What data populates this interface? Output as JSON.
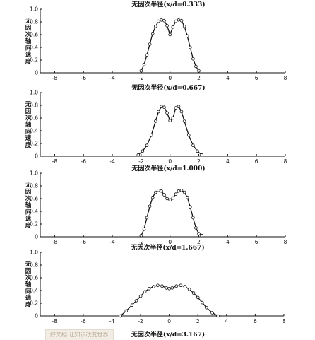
{
  "chart_data": [
    {
      "type": "line",
      "caption": "无因次半径(x/d=0.333)",
      "ylabel": "无因次轴向速度",
      "xlim": [
        -9,
        8
      ],
      "ylim": [
        0,
        1.0
      ],
      "xticks": [
        "-8",
        "-6",
        "-4",
        "-2",
        "0",
        "2",
        "4",
        "6",
        "8"
      ],
      "yticks": [
        "0",
        "0.2",
        "0.4",
        "0.6",
        "0.8",
        "1.0"
      ],
      "grid": false,
      "series": [
        {
          "x": [
            -2.0,
            -1.8,
            -1.6,
            -1.4,
            -1.2,
            -1.0,
            -0.8,
            -0.6,
            -0.4,
            -0.2,
            0.0,
            0.2,
            0.4,
            0.6,
            0.8,
            1.0,
            1.2,
            1.4,
            1.6,
            1.8,
            2.0
          ],
          "y": [
            0.03,
            0.13,
            0.28,
            0.45,
            0.62,
            0.73,
            0.81,
            0.83,
            0.82,
            0.74,
            0.6,
            0.72,
            0.81,
            0.83,
            0.82,
            0.73,
            0.58,
            0.4,
            0.22,
            0.1,
            0.03
          ]
        }
      ]
    },
    {
      "type": "line",
      "caption": "无因次半径(x/d=0.667)",
      "ylabel": "无因次轴向速度",
      "xlim": [
        -9,
        8
      ],
      "ylim": [
        0,
        1.0
      ],
      "xticks": [
        "-8",
        "-6",
        "-4",
        "-2",
        "0",
        "2",
        "4",
        "6",
        "8"
      ],
      "yticks": [
        "0",
        "0.2",
        "0.4",
        "0.6",
        "0.8",
        "1.0"
      ],
      "grid": false,
      "series": [
        {
          "x": [
            -2.2,
            -1.9,
            -1.6,
            -1.3,
            -1.0,
            -0.8,
            -0.6,
            -0.4,
            -0.2,
            0.0,
            0.2,
            0.4,
            0.6,
            0.8,
            1.0,
            1.3,
            1.6,
            1.9,
            2.2
          ],
          "y": [
            0.02,
            0.08,
            0.17,
            0.33,
            0.55,
            0.7,
            0.78,
            0.77,
            0.68,
            0.56,
            0.6,
            0.76,
            0.78,
            0.7,
            0.55,
            0.33,
            0.17,
            0.08,
            0.02
          ]
        }
      ]
    },
    {
      "type": "line",
      "caption": "无因次半径(x/d=1.000)",
      "ylabel": "无因次轴向速度",
      "xlim": [
        -9,
        8
      ],
      "ylim": [
        0,
        1.0
      ],
      "xticks": [
        "-8",
        "-6",
        "-4",
        "-2",
        "0",
        "2",
        "4",
        "6",
        "8"
      ],
      "yticks": [
        "0",
        "0.2",
        "0.4",
        "0.6",
        "0.8",
        "1.0"
      ],
      "grid": false,
      "series": [
        {
          "x": [
            -2.0,
            -1.8,
            -1.6,
            -1.4,
            -1.2,
            -1.0,
            -0.8,
            -0.6,
            -0.4,
            -0.2,
            0.0,
            0.2,
            0.4,
            0.6,
            0.8,
            1.0,
            1.2,
            1.4,
            1.6,
            1.8,
            2.0,
            2.2
          ],
          "y": [
            0.02,
            0.12,
            0.3,
            0.48,
            0.62,
            0.7,
            0.73,
            0.72,
            0.66,
            0.6,
            0.58,
            0.61,
            0.67,
            0.72,
            0.73,
            0.7,
            0.62,
            0.47,
            0.3,
            0.14,
            0.05,
            0.02
          ]
        }
      ]
    },
    {
      "type": "line",
      "caption": "无因次半径(x/d=1.667)",
      "ylabel": "无因次轴向速度",
      "xlim": [
        -9,
        8
      ],
      "ylim": [
        0,
        1.0
      ],
      "xticks": [
        "-8",
        "-6",
        "-4",
        "-2",
        "0",
        "2",
        "4",
        "6",
        "8"
      ],
      "yticks": [
        "0",
        "0.2",
        "0.4",
        "0.6",
        "0.8",
        "1.0"
      ],
      "grid": false,
      "series": [
        {
          "x": [
            -3.4,
            -3.0,
            -2.6,
            -2.3,
            -2.0,
            -1.7,
            -1.4,
            -1.1,
            -0.8,
            -0.5,
            -0.2,
            0.0,
            0.2,
            0.5,
            0.8,
            1.1,
            1.4,
            1.7,
            2.0,
            2.3,
            2.6,
            3.0,
            3.4
          ],
          "y": [
            0.0,
            0.08,
            0.17,
            0.24,
            0.31,
            0.38,
            0.43,
            0.46,
            0.48,
            0.47,
            0.44,
            0.43,
            0.44,
            0.47,
            0.48,
            0.46,
            0.42,
            0.36,
            0.29,
            0.21,
            0.13,
            0.05,
            0.0
          ]
        }
      ]
    }
  ],
  "bottom_caption": "无因次半径(x/d=3.167)",
  "watermark_text": "好文档 让知识改变世界"
}
